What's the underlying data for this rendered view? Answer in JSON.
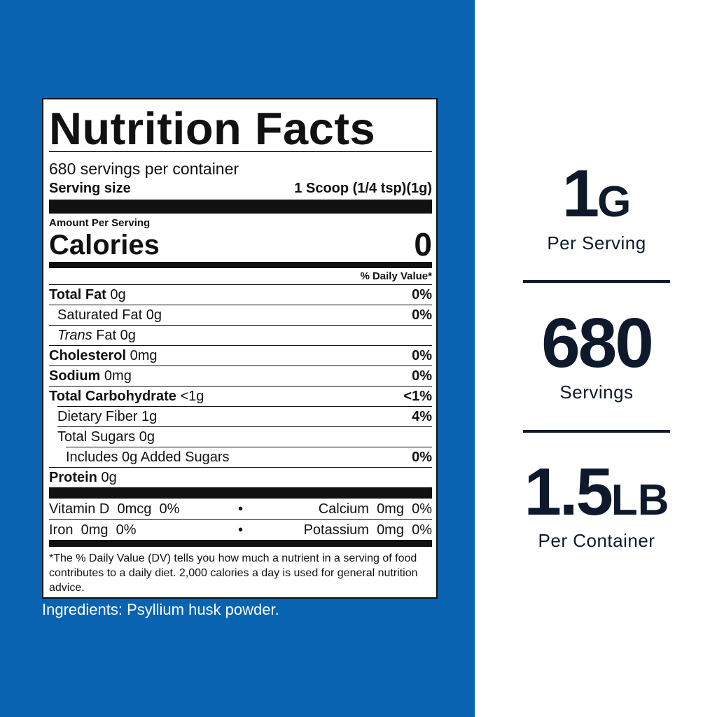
{
  "label": {
    "title": "Nutrition Facts",
    "servings_per_container": "680 servings per container",
    "serving_size": {
      "label": "Serving size",
      "value": "1 Scoop (1/4 tsp)(1g)"
    },
    "amount_per_serving": "Amount Per Serving",
    "calories": {
      "label": "Calories",
      "value": "0"
    },
    "daily_value_header": "% Daily Value*",
    "nutrients": [
      {
        "name": "Total Fat",
        "amount": "0g",
        "dv": "0%"
      },
      {
        "name": "Saturated Fat",
        "amount": "0g",
        "dv": "0%"
      },
      {
        "name_italic": "Trans",
        "name": "Fat",
        "amount": "0g"
      },
      {
        "name": "Cholesterol",
        "amount": "0mg",
        "dv": "0%"
      },
      {
        "name": "Sodium",
        "amount": "0mg",
        "dv": "0%"
      },
      {
        "name": "Total Carbohydrate",
        "amount": "<1g",
        "dv": "<1%"
      },
      {
        "name": "Dietary Fiber",
        "amount": "1g",
        "dv": "4%"
      },
      {
        "name": "Total Sugars",
        "amount": "0g"
      },
      {
        "name": "Includes 0g Added Sugars",
        "dv": "0%"
      },
      {
        "name": "Protein",
        "amount": "0g"
      }
    ],
    "micronutrients": [
      {
        "name": "Vitamin D",
        "amount": "0mcg",
        "dv": "0%"
      },
      {
        "name": "Calcium",
        "amount": "0mg",
        "dv": "0%"
      },
      {
        "name": "Iron",
        "amount": "0mg",
        "dv": "0%"
      },
      {
        "name": "Potassium",
        "amount": "0mg",
        "dv": "0%"
      }
    ],
    "footnote": "*The % Daily Value (DV) tells you how much a nutrient in a serving of food contributes to a daily diet.  2,000 calories a day is used for general nutrition advice."
  },
  "ingredients": "Ingredients: Psyllium husk powder.",
  "highlights": [
    {
      "number": "1",
      "unit": "G",
      "caption": "Per Serving"
    },
    {
      "number": "680",
      "caption": "Servings"
    },
    {
      "number": "1.5",
      "unit": "LB",
      "caption": "Per Container"
    }
  ]
}
